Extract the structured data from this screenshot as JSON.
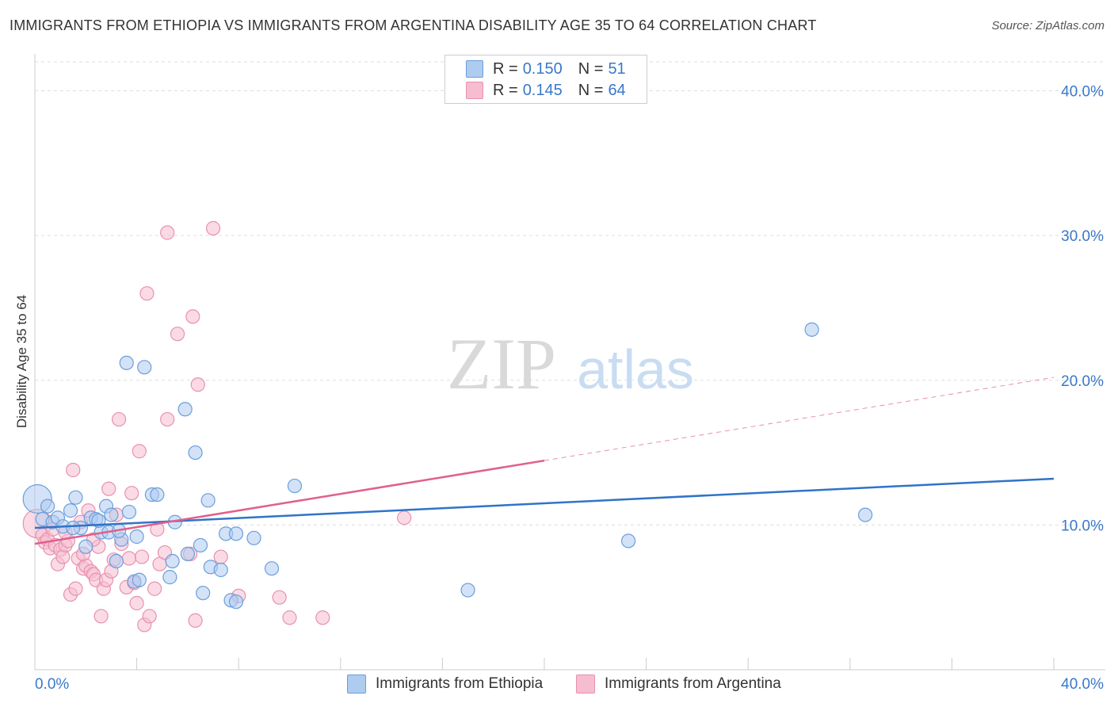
{
  "title": "IMMIGRANTS FROM ETHIOPIA VS IMMIGRANTS FROM ARGENTINA DISABILITY AGE 35 TO 64 CORRELATION CHART",
  "source": "Source: ZipAtlas.com",
  "watermark": {
    "zip": "ZIP",
    "atlas": "atlas"
  },
  "legend": {
    "r_label": "R =",
    "n_label": "N =",
    "rows": [
      {
        "series": "Immigrants from Ethiopia",
        "r": "0.150",
        "n": "51"
      },
      {
        "series": "Immigrants from Argentina",
        "r": "0.145",
        "n": "64"
      }
    ]
  },
  "colors": {
    "ethiopia_fill": "#aecbf0",
    "ethiopia_stroke": "#6a9fdc",
    "ethiopia_line": "#2f74c8",
    "argentina_fill": "#f6bdd0",
    "argentina_stroke": "#e891ae",
    "argentina_line": "#e0608c",
    "tick_text": "#3a78c9"
  },
  "chart_data": {
    "type": "scatter",
    "title": "IMMIGRANTS FROM ETHIOPIA VS IMMIGRANTS FROM ARGENTINA DISABILITY AGE 35 TO 64 CORRELATION CHART",
    "xlabel": "",
    "ylabel": "Disability Age 35 to 64",
    "xlim": [
      0,
      40
    ],
    "ylim": [
      0,
      42
    ],
    "x_tick_labels": [
      "0.0%",
      "40.0%"
    ],
    "y_ticks": [
      10,
      20,
      30,
      40
    ],
    "y_tick_labels": [
      "10.0%",
      "20.0%",
      "30.0%",
      "40.0%"
    ],
    "grid": true,
    "legend_position": "top-center",
    "series": [
      {
        "name": "Immigrants from Ethiopia",
        "r": 0.15,
        "n": 51,
        "trend": {
          "x": [
            0,
            40
          ],
          "y": [
            9.8,
            13.2
          ],
          "dashed_from": null
        },
        "points": [
          {
            "x": 0.1,
            "y": 11.8,
            "big": true
          },
          {
            "x": 0.3,
            "y": 10.4
          },
          {
            "x": 0.5,
            "y": 11.3
          },
          {
            "x": 0.7,
            "y": 10.2
          },
          {
            "x": 0.9,
            "y": 10.5
          },
          {
            "x": 1.1,
            "y": 9.9
          },
          {
            "x": 1.4,
            "y": 11.0
          },
          {
            "x": 1.6,
            "y": 11.9
          },
          {
            "x": 1.8,
            "y": 9.8
          },
          {
            "x": 2.0,
            "y": 8.5
          },
          {
            "x": 2.2,
            "y": 10.5
          },
          {
            "x": 2.4,
            "y": 10.4
          },
          {
            "x": 2.6,
            "y": 9.5
          },
          {
            "x": 2.8,
            "y": 11.3
          },
          {
            "x": 2.9,
            "y": 9.5
          },
          {
            "x": 3.0,
            "y": 10.7
          },
          {
            "x": 3.2,
            "y": 7.5
          },
          {
            "x": 3.4,
            "y": 9.0
          },
          {
            "x": 3.6,
            "y": 21.2
          },
          {
            "x": 3.7,
            "y": 10.9
          },
          {
            "x": 3.9,
            "y": 6.1
          },
          {
            "x": 4.0,
            "y": 9.2
          },
          {
            "x": 4.1,
            "y": 6.2
          },
          {
            "x": 4.3,
            "y": 20.9
          },
          {
            "x": 4.6,
            "y": 12.1
          },
          {
            "x": 4.8,
            "y": 12.1
          },
          {
            "x": 5.3,
            "y": 6.4
          },
          {
            "x": 5.4,
            "y": 7.5
          },
          {
            "x": 5.5,
            "y": 10.2
          },
          {
            "x": 5.9,
            "y": 18.0
          },
          {
            "x": 6.0,
            "y": 8.0
          },
          {
            "x": 6.3,
            "y": 15.0
          },
          {
            "x": 6.5,
            "y": 8.6
          },
          {
            "x": 6.6,
            "y": 5.3
          },
          {
            "x": 6.8,
            "y": 11.7
          },
          {
            "x": 6.9,
            "y": 7.1
          },
          {
            "x": 7.3,
            "y": 6.9
          },
          {
            "x": 7.5,
            "y": 9.4
          },
          {
            "x": 7.7,
            "y": 4.8
          },
          {
            "x": 7.9,
            "y": 4.7
          },
          {
            "x": 7.9,
            "y": 9.4
          },
          {
            "x": 8.6,
            "y": 9.1
          },
          {
            "x": 9.3,
            "y": 7.0
          },
          {
            "x": 10.2,
            "y": 12.7
          },
          {
            "x": 17.0,
            "y": 5.5
          },
          {
            "x": 23.3,
            "y": 8.9
          },
          {
            "x": 30.5,
            "y": 23.5
          },
          {
            "x": 32.6,
            "y": 10.7
          },
          {
            "x": 1.5,
            "y": 9.8
          },
          {
            "x": 2.5,
            "y": 10.3
          },
          {
            "x": 3.3,
            "y": 9.6
          }
        ]
      },
      {
        "name": "Immigrants from Argentina",
        "r": 0.145,
        "n": 64,
        "trend": {
          "x": [
            0,
            40
          ],
          "y": [
            8.7,
            20.2
          ],
          "dashed_from": 20
        },
        "points": [
          {
            "x": 0.1,
            "y": 10.1,
            "big": true
          },
          {
            "x": 0.3,
            "y": 9.3
          },
          {
            "x": 0.4,
            "y": 8.8
          },
          {
            "x": 0.5,
            "y": 9.0
          },
          {
            "x": 0.6,
            "y": 8.4
          },
          {
            "x": 0.8,
            "y": 8.6
          },
          {
            "x": 0.9,
            "y": 7.3
          },
          {
            "x": 1.0,
            "y": 8.3
          },
          {
            "x": 1.1,
            "y": 7.8
          },
          {
            "x": 1.2,
            "y": 8.6
          },
          {
            "x": 1.3,
            "y": 8.9
          },
          {
            "x": 1.4,
            "y": 5.2
          },
          {
            "x": 1.5,
            "y": 13.8
          },
          {
            "x": 1.6,
            "y": 5.6
          },
          {
            "x": 1.7,
            "y": 7.7
          },
          {
            "x": 1.8,
            "y": 10.2
          },
          {
            "x": 1.9,
            "y": 7.0
          },
          {
            "x": 2.0,
            "y": 7.2
          },
          {
            "x": 2.1,
            "y": 11.0
          },
          {
            "x": 2.2,
            "y": 6.8
          },
          {
            "x": 2.3,
            "y": 6.6
          },
          {
            "x": 2.4,
            "y": 6.2
          },
          {
            "x": 2.5,
            "y": 8.5
          },
          {
            "x": 2.6,
            "y": 3.7
          },
          {
            "x": 2.7,
            "y": 5.6
          },
          {
            "x": 2.8,
            "y": 6.2
          },
          {
            "x": 2.9,
            "y": 12.5
          },
          {
            "x": 3.0,
            "y": 6.8
          },
          {
            "x": 3.2,
            "y": 10.7
          },
          {
            "x": 3.3,
            "y": 17.3
          },
          {
            "x": 3.4,
            "y": 8.7
          },
          {
            "x": 3.6,
            "y": 5.7
          },
          {
            "x": 3.7,
            "y": 7.7
          },
          {
            "x": 3.8,
            "y": 12.2
          },
          {
            "x": 3.9,
            "y": 6.0
          },
          {
            "x": 4.0,
            "y": 4.6
          },
          {
            "x": 4.1,
            "y": 15.1
          },
          {
            "x": 4.2,
            "y": 7.8
          },
          {
            "x": 4.3,
            "y": 3.1
          },
          {
            "x": 4.4,
            "y": 26.0
          },
          {
            "x": 4.5,
            "y": 3.7
          },
          {
            "x": 4.7,
            "y": 5.6
          },
          {
            "x": 4.8,
            "y": 9.7
          },
          {
            "x": 4.9,
            "y": 7.3
          },
          {
            "x": 5.1,
            "y": 8.1
          },
          {
            "x": 5.2,
            "y": 17.3
          },
          {
            "x": 5.2,
            "y": 30.2
          },
          {
            "x": 5.6,
            "y": 23.2
          },
          {
            "x": 6.1,
            "y": 8.0
          },
          {
            "x": 6.2,
            "y": 24.4
          },
          {
            "x": 6.3,
            "y": 3.4
          },
          {
            "x": 6.4,
            "y": 19.7
          },
          {
            "x": 7.0,
            "y": 30.5
          },
          {
            "x": 7.3,
            "y": 7.8
          },
          {
            "x": 8.0,
            "y": 5.1
          },
          {
            "x": 9.6,
            "y": 5.0
          },
          {
            "x": 10.0,
            "y": 3.6
          },
          {
            "x": 11.3,
            "y": 3.6
          },
          {
            "x": 14.5,
            "y": 10.5
          },
          {
            "x": 1.2,
            "y": 9.5
          },
          {
            "x": 2.3,
            "y": 9.0
          },
          {
            "x": 0.7,
            "y": 9.7
          },
          {
            "x": 3.1,
            "y": 7.6
          },
          {
            "x": 1.9,
            "y": 8.0
          }
        ]
      }
    ]
  }
}
